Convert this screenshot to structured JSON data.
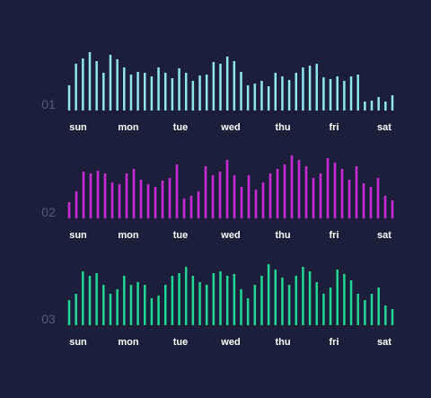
{
  "colors": {
    "background": "#1c1f3b",
    "row_label": "#565b80",
    "day_label": "#ffffff"
  },
  "chart_data": [
    {
      "type": "bar",
      "label": "01",
      "color": "#8fe6ef",
      "days": [
        "sun",
        "mon",
        "tue",
        "wed",
        "thu",
        "fri",
        "sat"
      ],
      "values": [
        28,
        52,
        58,
        65,
        55,
        42,
        62,
        57,
        48,
        40,
        43,
        42,
        38,
        48,
        42,
        36,
        47,
        42,
        33,
        39,
        40,
        54,
        52,
        60,
        55,
        43,
        28,
        30,
        33,
        27,
        42,
        38,
        34,
        42,
        48,
        50,
        52,
        37,
        35,
        38,
        33,
        38,
        40,
        10,
        11,
        15,
        10,
        17
      ]
    },
    {
      "type": "bar",
      "label": "02",
      "color": "#cc2bdb",
      "days": [
        "sun",
        "mon",
        "tue",
        "wed",
        "thu",
        "fri",
        "sat"
      ],
      "values": [
        18,
        30,
        52,
        50,
        53,
        50,
        40,
        38,
        50,
        55,
        43,
        38,
        35,
        42,
        45,
        60,
        22,
        25,
        30,
        58,
        48,
        52,
        65,
        48,
        35,
        48,
        32,
        40,
        50,
        55,
        60,
        70,
        65,
        58,
        45,
        50,
        67,
        62,
        55,
        43,
        58,
        39,
        35,
        45,
        25,
        20
      ]
    },
    {
      "type": "bar",
      "label": "03",
      "color": "#20d793",
      "days": [
        "sun",
        "mon",
        "tue",
        "wed",
        "thu",
        "fri",
        "sat"
      ],
      "values": [
        28,
        35,
        60,
        55,
        58,
        45,
        35,
        40,
        55,
        45,
        48,
        45,
        30,
        33,
        45,
        55,
        58,
        65,
        55,
        48,
        45,
        58,
        60,
        55,
        57,
        40,
        30,
        45,
        55,
        68,
        62,
        53,
        45,
        55,
        65,
        60,
        48,
        35,
        42,
        62,
        57,
        50,
        35,
        28,
        35,
        42,
        22,
        18
      ]
    }
  ]
}
